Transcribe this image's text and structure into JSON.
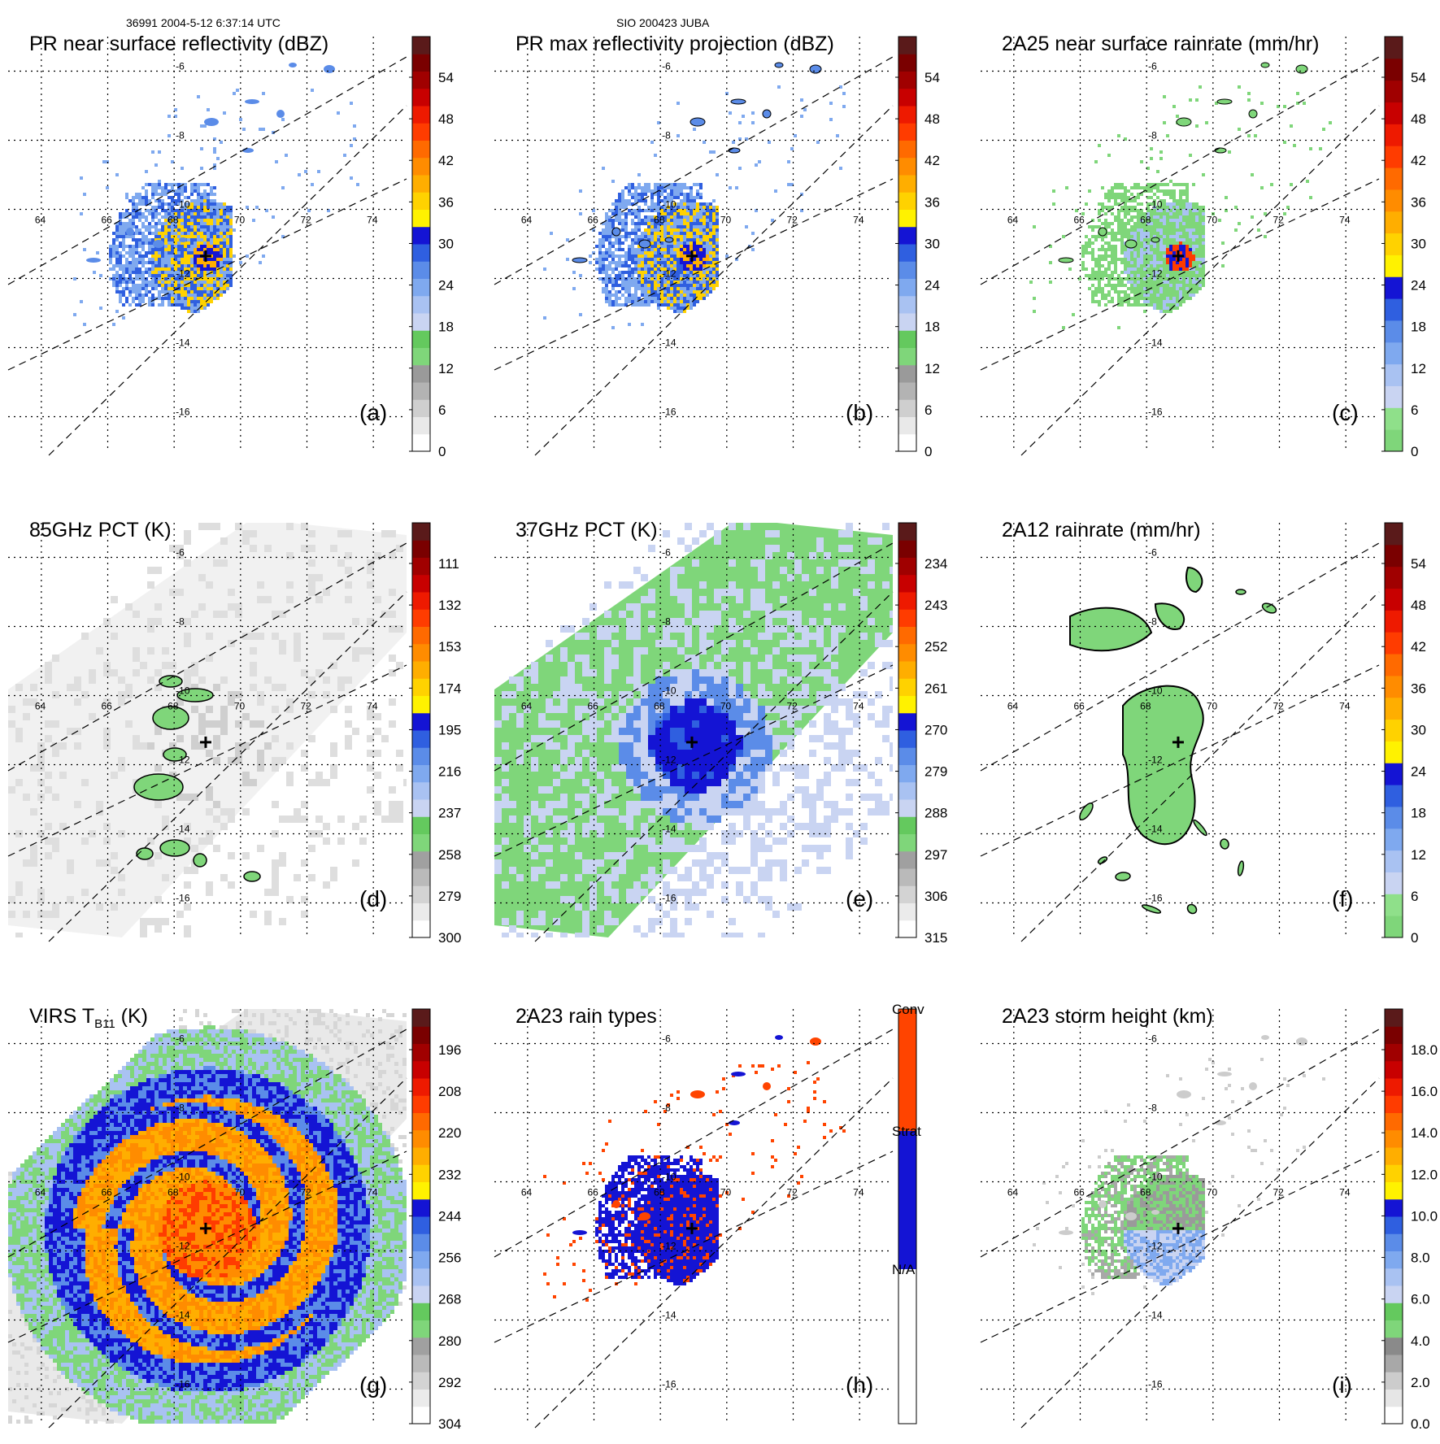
{
  "header": {
    "left": "36991 2004-5-12 6:37:14 UTC",
    "center": "SIO 200423 JUBA"
  },
  "grid": {
    "lon_labels": [
      "64",
      "66",
      "68",
      "70",
      "72",
      "74"
    ],
    "lat_labels": [
      "-6",
      "-8",
      "-10",
      "-12",
      "-14",
      "-16"
    ]
  },
  "panels": [
    {
      "id": "a",
      "title": "PR near surface reflectivity (dBZ)",
      "label": "(a)",
      "ticks": [
        "54",
        "48",
        "42",
        "36",
        "30",
        "24",
        "18",
        "12",
        "6",
        "0"
      ],
      "cmap": "dbz",
      "field": "swath",
      "swath": true
    },
    {
      "id": "b",
      "title": "PR max reflectivity projection (dBZ)",
      "label": "(b)",
      "ticks": [
        "54",
        "48",
        "42",
        "36",
        "30",
        "24",
        "18",
        "12",
        "6",
        "0"
      ],
      "cmap": "dbz",
      "field": "swath",
      "swath": true
    },
    {
      "id": "c",
      "title": "2A25 near surface rainrate (mm/hr)",
      "label": "(c)",
      "ticks": [
        "54",
        "48",
        "42",
        "36",
        "30",
        "24",
        "18",
        "12",
        "6",
        "0"
      ],
      "cmap": "rain",
      "field": "swathgreen",
      "swath": true
    },
    {
      "id": "d",
      "title": "85GHz PCT (K)",
      "label": "(d)",
      "ticks": [
        "111",
        "132",
        "153",
        "174",
        "195",
        "216",
        "237",
        "258",
        "279",
        "300"
      ],
      "cmap": "pct",
      "field": "grey",
      "swath": true
    },
    {
      "id": "e",
      "title": "37GHz PCT (K)",
      "label": "(e)",
      "ticks": [
        "234",
        "243",
        "252",
        "261",
        "270",
        "279",
        "288",
        "297",
        "306",
        "315"
      ],
      "cmap": "pct",
      "field": "green",
      "swath": true
    },
    {
      "id": "f",
      "title": "2A12 rainrate (mm/hr)",
      "label": "(f)",
      "ticks": [
        "54",
        "48",
        "42",
        "36",
        "30",
        "24",
        "18",
        "12",
        "6",
        "0"
      ],
      "cmap": "rain",
      "field": "tmigreen",
      "swath": true
    },
    {
      "id": "g",
      "title": "VIRS T",
      "title_sub": "B11",
      "title_tail": " (K)",
      "label": "(g)",
      "ticks": [
        "196",
        "208",
        "220",
        "232",
        "244",
        "256",
        "268",
        "280",
        "292",
        "304"
      ],
      "cmap": "pct",
      "field": "virs",
      "swath": true
    },
    {
      "id": "h",
      "title": "2A23 rain types",
      "label": "(h)",
      "ticks": [
        "Conv",
        "Strat",
        "N/A"
      ],
      "cmap": "types",
      "field": "types",
      "swath": true
    },
    {
      "id": "i",
      "title": "2A23 storm height (km)",
      "label": "(i)",
      "ticks": [
        "18.0",
        "16.0",
        "14.0",
        "12.0",
        "10.0",
        "8.0",
        "6.0",
        "4.0",
        "2.0",
        "0.0"
      ],
      "cmap": "height",
      "field": "height",
      "swath": true
    }
  ],
  "colors": {
    "dbz": [
      "#ffffff",
      "#e9e9e9",
      "#cfcfcf",
      "#b3b3b3",
      "#9a9a9a",
      "#7fd67a",
      "#64c95e",
      "#c9d4f2",
      "#a9c2f2",
      "#7fa9ef",
      "#5b8ce8",
      "#2f5fe0",
      "#1414d4",
      "#fff200",
      "#ffd200",
      "#ffae00",
      "#ff8c00",
      "#ff6a00",
      "#ff3c00",
      "#ee1a00",
      "#c80000",
      "#a00000",
      "#7a0000",
      "#5a1a1a"
    ],
    "pct": [
      "#ffffff",
      "#ebebeb",
      "#d3d3d3",
      "#bababa",
      "#a0a0a0",
      "#7fd67a",
      "#64c95e",
      "#c9d4f2",
      "#a9c2f2",
      "#7fa9ef",
      "#5b8ce8",
      "#2f5fe0",
      "#1414d4",
      "#fff200",
      "#ffd200",
      "#ffae00",
      "#ff8c00",
      "#ff6a00",
      "#ff3c00",
      "#ee1a00",
      "#c80000",
      "#a00000",
      "#7a0000",
      "#5a1a1a"
    ],
    "rain": [
      "#7fd67a",
      "#8fe08a",
      "#c9d4f2",
      "#a9c2f2",
      "#7fa9ef",
      "#5b8ce8",
      "#2f5fe0",
      "#1414d4",
      "#fff200",
      "#ffd200",
      "#ffae00",
      "#ff8c00",
      "#ff6a00",
      "#ff3c00",
      "#ee1a00",
      "#c80000",
      "#a00000",
      "#7a0000",
      "#5a1a1a"
    ],
    "height": [
      "#ffffff",
      "#e6e6e6",
      "#cccccc",
      "#a8a8a8",
      "#8a8a8a",
      "#7fd67a",
      "#64c95e",
      "#c9d4f2",
      "#a9c2f2",
      "#7fa9ef",
      "#5b8ce8",
      "#2f5fe0",
      "#1414d4",
      "#fff200",
      "#ffd200",
      "#ffae00",
      "#ff8c00",
      "#ff6a00",
      "#ff3c00",
      "#ee1a00",
      "#c80000",
      "#a00000",
      "#7a0000",
      "#5a1a1a"
    ],
    "types": [
      "#ffffff",
      "#1414d4",
      "#ff4400"
    ]
  }
}
